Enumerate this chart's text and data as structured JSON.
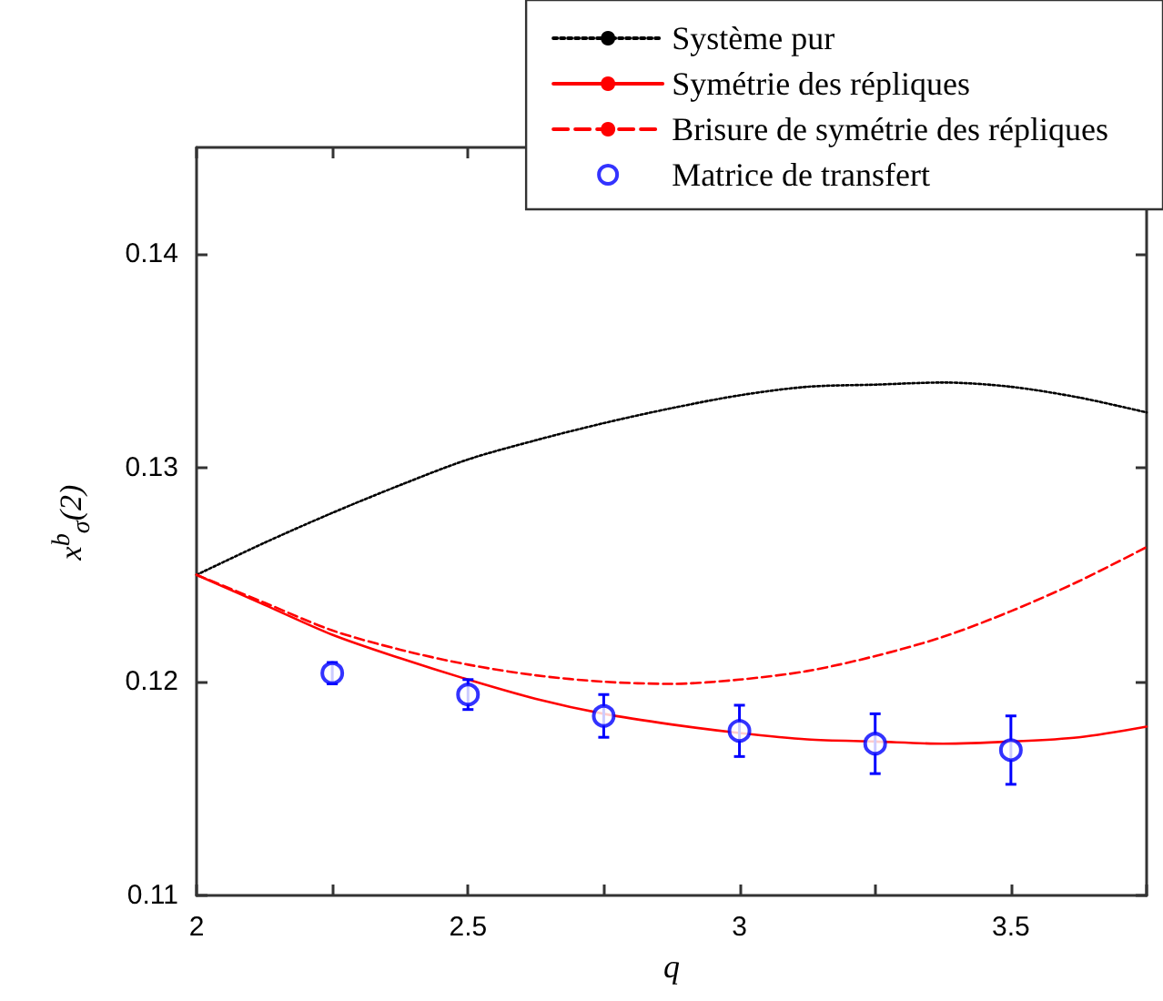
{
  "chart_data": {
    "type": "line",
    "xlabel": "q",
    "ylabel": "x$^{b}$$_{σ}$(2)",
    "xlim": [
      2,
      3.75
    ],
    "xticks": [
      2,
      {
        "value": 2.25,
        "label": null
      },
      2.5,
      {
        "value": 2.75,
        "label": null
      },
      3,
      {
        "value": 3.25,
        "label": null
      },
      3.5,
      {
        "value": 3.75,
        "label": null
      }
    ],
    "ylim": [
      0.11,
      0.145
    ],
    "yticks": [
      0.11,
      0.12,
      0.13,
      0.14
    ],
    "grid": false,
    "legend": "top right",
    "series": [
      {
        "name": "Système pur",
        "type": "line",
        "line_style": "dotted",
        "color": "#000000",
        "x": [
          2,
          2.125,
          2.25,
          2.375,
          2.5,
          2.625,
          2.75,
          2.875,
          3,
          3.125,
          3.25,
          3.375,
          3.5,
          3.625,
          3.75
        ],
        "values": [
          0.125,
          0.1265,
          0.1279,
          0.1292,
          0.1304,
          0.1313,
          0.1321,
          0.1328,
          0.1334,
          0.1338,
          0.1339,
          0.134,
          0.1338,
          0.1333,
          0.1326
        ]
      },
      {
        "name": "Symétrie des répliques",
        "type": "line",
        "line_style": "solid",
        "color": "#ff0000",
        "x": [
          2,
          2.125,
          2.25,
          2.375,
          2.5,
          2.625,
          2.75,
          2.875,
          3,
          3.125,
          3.25,
          3.375,
          3.5,
          3.625,
          3.75
        ],
        "values": [
          0.125,
          0.1236,
          0.1222,
          0.1211,
          0.1201,
          0.1192,
          0.1185,
          0.118,
          0.1176,
          0.1173,
          0.1172,
          0.1171,
          0.1172,
          0.1174,
          0.1179
        ]
      },
      {
        "name": "Brisure de symétrie des répliques",
        "type": "line",
        "line_style": "dashed",
        "color": "#ff0000",
        "x": [
          2,
          2.125,
          2.25,
          2.375,
          2.5,
          2.625,
          2.75,
          2.875,
          3,
          3.125,
          3.25,
          3.375,
          3.5,
          3.625,
          3.75
        ],
        "values": [
          0.125,
          0.1237,
          0.1224,
          0.1215,
          0.1208,
          0.1203,
          0.12,
          0.1199,
          0.1201,
          0.1205,
          0.1212,
          0.1221,
          0.1233,
          0.1247,
          0.1263
        ]
      },
      {
        "name": "Matrice de transfert",
        "type": "scatter",
        "marker": "circle",
        "color": "#0000ff",
        "x": [
          2.25,
          2.5,
          2.75,
          3,
          3.25,
          3.5
        ],
        "values": [
          0.1204,
          0.1194,
          0.1184,
          0.1177,
          0.1171,
          0.1168
        ],
        "errors": [
          0.0005,
          0.0007,
          0.001,
          0.0012,
          0.0014,
          0.0016
        ]
      }
    ]
  }
}
